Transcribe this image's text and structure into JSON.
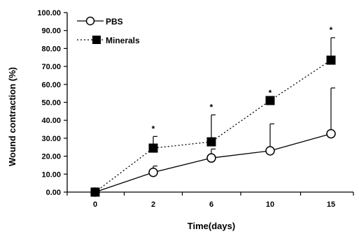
{
  "chart_data": {
    "type": "line",
    "xlabel": "Time(days)",
    "ylabel": "Wound contraction (%)",
    "categories": [
      "0",
      "2",
      "6",
      "10",
      "15"
    ],
    "ylim": [
      0,
      100
    ],
    "yticks": [
      "0.00",
      "10.00",
      "20.00",
      "30.00",
      "40.00",
      "50.00",
      "60.00",
      "70.00",
      "80.00",
      "90.00",
      "100.00"
    ],
    "legend_position": "top-left",
    "grid": false,
    "series": [
      {
        "name": "PBS",
        "marker": "open-circle",
        "line_style": "solid",
        "values": [
          0,
          11,
          19,
          23,
          32.5
        ],
        "error_upper": [
          0,
          14.5,
          24,
          38,
          58
        ]
      },
      {
        "name": "Minerals",
        "marker": "filled-square",
        "line_style": "dotted",
        "values": [
          0,
          24.5,
          28,
          51,
          73.5
        ],
        "error_upper": [
          0,
          31,
          43,
          51,
          86
        ]
      }
    ],
    "significance_marker": "*",
    "significance_at": [
      "2",
      "6",
      "10",
      "15"
    ]
  }
}
